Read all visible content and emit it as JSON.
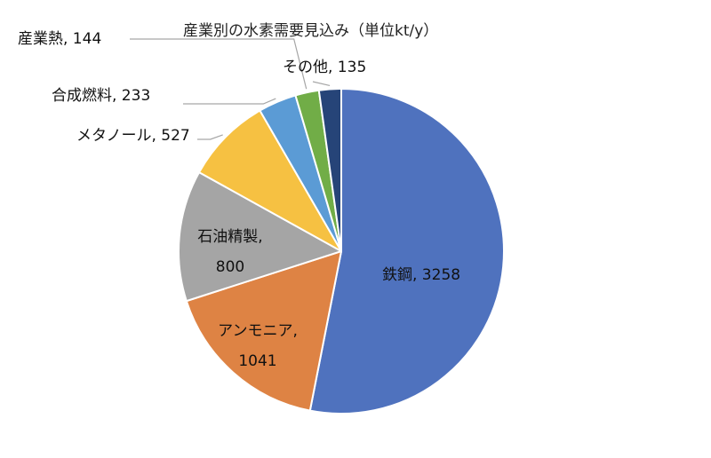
{
  "chart_data": {
    "type": "pie",
    "title": "産業別の水素需要見込み（単位kt/y）",
    "start_angle_deg": 0,
    "direction": "clockwise",
    "categories": [
      "鉄鋼",
      "アンモニア",
      "石油精製",
      "メタノール",
      "合成燃料",
      "産業熱",
      "その他"
    ],
    "values": [
      3258,
      1041,
      800,
      527,
      233,
      144,
      135
    ],
    "colors": [
      "#4F72BE",
      "#DE8344",
      "#A5A5A5",
      "#F6C142",
      "#5B9BD5",
      "#71AD47",
      "#264478"
    ],
    "labels": [
      {
        "line1": "鉄鋼, 3258",
        "line2": ""
      },
      {
        "line1": "アンモニア,",
        "line2": "1041"
      },
      {
        "line1": "石油精製,",
        "line2": "800"
      },
      {
        "line1": "メタノール, 527",
        "line2": ""
      },
      {
        "line1": "合成燃料, 233",
        "line2": ""
      },
      {
        "line1": "産業熱, 144",
        "line2": ""
      },
      {
        "line1": "その他, 135",
        "line2": ""
      }
    ],
    "legend": "none"
  }
}
